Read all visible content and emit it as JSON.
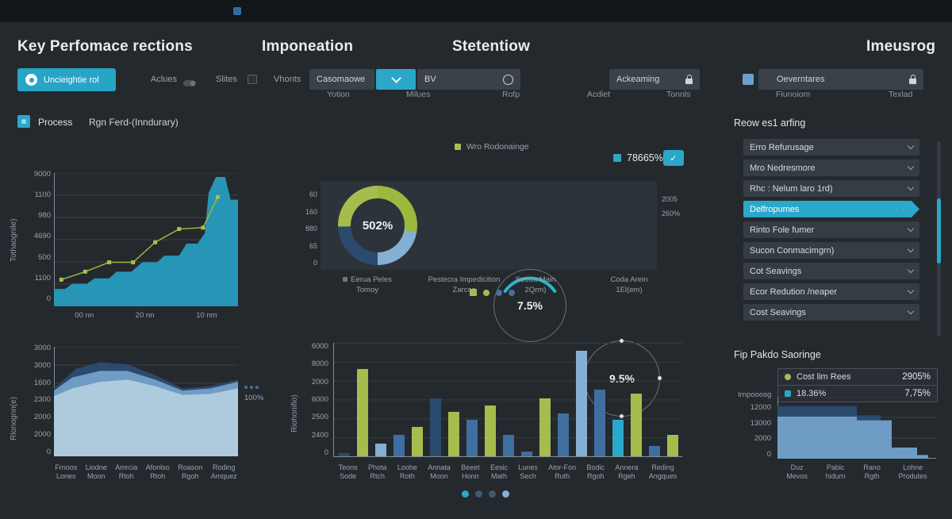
{
  "header": {
    "titles": [
      "Key Perfomace rections",
      "Imponeation",
      "Stetentiow",
      "Imeusrog"
    ]
  },
  "controls": {
    "primary_button": "Uncieightie rol",
    "toggle1": "Aclues",
    "toggle2": "Slites",
    "toggle3": "Vhonts",
    "dropdown1": "Casomaowe",
    "field_bv": "BV",
    "field_ackeaming": "Ackeaming",
    "field_oeverntare": "Oeverntares",
    "sublabels": [
      "Yotion",
      "Milues",
      "Rofp",
      "Acdiet",
      "Tonnls",
      "Flunoiom",
      "Texlad"
    ]
  },
  "process": {
    "label": "Process",
    "value": "Rgn Ferd-(Inndurary)"
  },
  "kpi": {
    "legend_label": "Wro Rodonainge",
    "value": "78665%"
  },
  "gauges": {
    "left_ticks": [
      "60",
      "160",
      "880",
      "65",
      "0"
    ],
    "right_labels": [
      "2005",
      "260%"
    ],
    "donut_value": "502%",
    "gauge2_value": "7.5%",
    "gauge3_value": "9.5%",
    "labels": [
      {
        "l1": "Eerua Peles",
        "l2": "Tomoy"
      },
      {
        "l1": "Pestecra Impedicition",
        "l2": "Zarcse"
      },
      {
        "l1": "Seoua Main",
        "l2": "2Qrm)"
      },
      {
        "l1": "Coda Arein",
        "l2": "1El(em)"
      }
    ],
    "dots": [
      "green-square",
      "green",
      "blue",
      "blue"
    ]
  },
  "right_panel": {
    "title": "Reow es1 arfing",
    "items_top": [
      "Erro Refurusage",
      "Mro Nedresmore",
      "Rhc : Nelum laro 1rd)"
    ],
    "active_item": "Delfropumes",
    "items_bottom": [
      "Rinto Fole fumer",
      "Sucon Conmacimgrn)",
      "Cot Seavings",
      "Ecor Redution /neaper",
      "Cost Seavings"
    ]
  },
  "savings_panel": {
    "title": "Fip Pakdo Saoringe",
    "legend": [
      {
        "label": "Cost lim Rees",
        "value": "2905%"
      },
      {
        "label": "18.36%",
        "value": "7,75%"
      }
    ]
  },
  "annotation": {
    "value": "100%"
  },
  "colors": {
    "teal": "#2ba7c9",
    "areaTeal": "#2795b5",
    "green": "#a6bd4e",
    "olive": "#9cb83f",
    "lightblue": "#85afd3",
    "blue": "#3f6fa0",
    "darknavy": "#2b4a6d",
    "stackLight": "#aecbdd",
    "stackMed": "#6f9cc4",
    "stackDark": "#2b4a6d",
    "dotGray": "#3e5a74",
    "grid": "#3a4149",
    "axis": "#828d96"
  },
  "chart_data": [
    {
      "id": "process-trend",
      "type": "area",
      "title": "Process  Rgn Ferd-(Inndurary)",
      "ylabel": "Tothaognile)",
      "yticks": [
        "9000",
        "1100",
        "980",
        "4690",
        "500",
        "1100",
        "0"
      ],
      "xticks": [
        "00 nn",
        "20 nn",
        "10 nm"
      ],
      "ylim": [
        0,
        9000
      ],
      "grid": true,
      "area_points": [
        [
          0,
          13
        ],
        [
          6,
          13
        ],
        [
          10,
          17
        ],
        [
          18,
          17
        ],
        [
          22,
          21
        ],
        [
          30,
          21
        ],
        [
          34,
          26
        ],
        [
          42,
          26
        ],
        [
          48,
          33
        ],
        [
          56,
          33
        ],
        [
          60,
          38
        ],
        [
          68,
          38
        ],
        [
          72,
          47
        ],
        [
          78,
          47
        ],
        [
          82,
          55
        ],
        [
          84,
          85
        ],
        [
          88,
          97
        ],
        [
          93,
          97
        ],
        [
          96,
          80
        ],
        [
          100,
          80
        ]
      ],
      "line_points": [
        [
          4,
          20
        ],
        [
          17,
          26
        ],
        [
          30,
          33
        ],
        [
          43,
          33
        ],
        [
          55,
          48
        ],
        [
          68,
          58
        ],
        [
          81,
          59
        ],
        [
          89,
          82
        ]
      ]
    },
    {
      "id": "region-stacked-area",
      "type": "area",
      "ylabel": "Rlonognn(e)",
      "yticks": [
        "3000",
        "3000",
        "1600",
        "2300",
        "2000",
        "2000",
        "0"
      ],
      "categories": [
        "Frnoos Lones",
        "Liodne Moon",
        "Amrcia Rtoh",
        "Afonlso Rtoh",
        "Roason Rgoh",
        "Roding Amquez"
      ],
      "grid": true,
      "series": [
        {
          "name": "dark",
          "points": [
            [
              0,
              62
            ],
            [
              12,
              80
            ],
            [
              25,
              86
            ],
            [
              40,
              84
            ],
            [
              55,
              74
            ],
            [
              70,
              62
            ],
            [
              85,
              64
            ],
            [
              100,
              70
            ]
          ]
        },
        {
          "name": "medium",
          "points": [
            [
              0,
              60
            ],
            [
              10,
              72
            ],
            [
              25,
              78
            ],
            [
              40,
              78
            ],
            [
              55,
              70
            ],
            [
              70,
              60
            ],
            [
              85,
              62
            ],
            [
              100,
              68
            ]
          ]
        },
        {
          "name": "light",
          "points": [
            [
              0,
              55
            ],
            [
              10,
              62
            ],
            [
              25,
              68
            ],
            [
              40,
              70
            ],
            [
              55,
              64
            ],
            [
              70,
              56
            ],
            [
              85,
              57
            ],
            [
              100,
              62
            ]
          ]
        }
      ],
      "annotation": "100%"
    },
    {
      "id": "category-bars",
      "type": "bar",
      "ylabel": "Riohonifio)",
      "yticks": [
        "6000",
        "8000",
        "2000",
        "6000",
        "2500",
        "2400",
        "0"
      ],
      "categories": [
        "Teons Sode",
        "Phota Rtch",
        "Loohe Roth",
        "Annata Moon",
        "Beeet Honn",
        "Eesic Math",
        "Lunes Sech",
        "Ator-Fon Ruth",
        "Bodic Rgoh",
        "Annera Rgeh",
        "Reding Angques"
      ],
      "grid": true,
      "bars": [
        {
          "value": 3,
          "color": "darknavy"
        },
        {
          "value": 77,
          "color": "green"
        },
        {
          "value": 11,
          "color": "lightblue"
        },
        {
          "value": 19,
          "color": "blue"
        },
        {
          "value": 26,
          "color": "green"
        },
        {
          "value": 51,
          "color": "darknavy"
        },
        {
          "value": 39,
          "color": "green"
        },
        {
          "value": 32,
          "color": "blue"
        },
        {
          "value": 45,
          "color": "green"
        },
        {
          "value": 19,
          "color": "blue"
        },
        {
          "value": 4,
          "color": "blue"
        },
        {
          "value": 51,
          "color": "green"
        },
        {
          "value": 38,
          "color": "blue"
        },
        {
          "value": 93,
          "color": "lightblue"
        },
        {
          "value": 59,
          "color": "blue"
        },
        {
          "value": 32,
          "color": "teal"
        },
        {
          "value": 55,
          "color": "green"
        },
        {
          "value": 9,
          "color": "blue"
        },
        {
          "value": 19,
          "color": "green"
        }
      ],
      "page_dots": [
        "teal",
        "gray",
        "gray",
        "lightblue"
      ]
    },
    {
      "id": "savings-steps",
      "type": "area",
      "ylabel": "Irnpooosg",
      "yticks": [
        "12000",
        "13000",
        "2000",
        "0"
      ],
      "categories": [
        "Duz Mevos",
        "Pablc hidurn",
        "Rano Rgth",
        "Lohne Produtes"
      ],
      "grid": true,
      "series": [
        {
          "name": "dark",
          "steps": [
            [
              0,
              85
            ],
            [
              50,
              85
            ],
            [
              50,
              70
            ],
            [
              65,
              70
            ],
            [
              65,
              0
            ]
          ]
        },
        {
          "name": "light",
          "steps": [
            [
              0,
              68
            ],
            [
              50,
              68
            ],
            [
              50,
              62
            ],
            [
              72,
              62
            ],
            [
              72,
              18
            ],
            [
              88,
              18
            ],
            [
              88,
              6
            ],
            [
              95,
              6
            ],
            [
              95,
              0
            ]
          ]
        }
      ]
    },
    {
      "id": "kpi-donut",
      "type": "pie",
      "center_value": "502%",
      "segments": [
        {
          "color": "olive",
          "deg": 100
        },
        {
          "color": "lightblue",
          "deg": 80
        },
        {
          "color": "darknavy",
          "deg": 88
        },
        {
          "color": "green",
          "deg": 92
        }
      ]
    }
  ]
}
